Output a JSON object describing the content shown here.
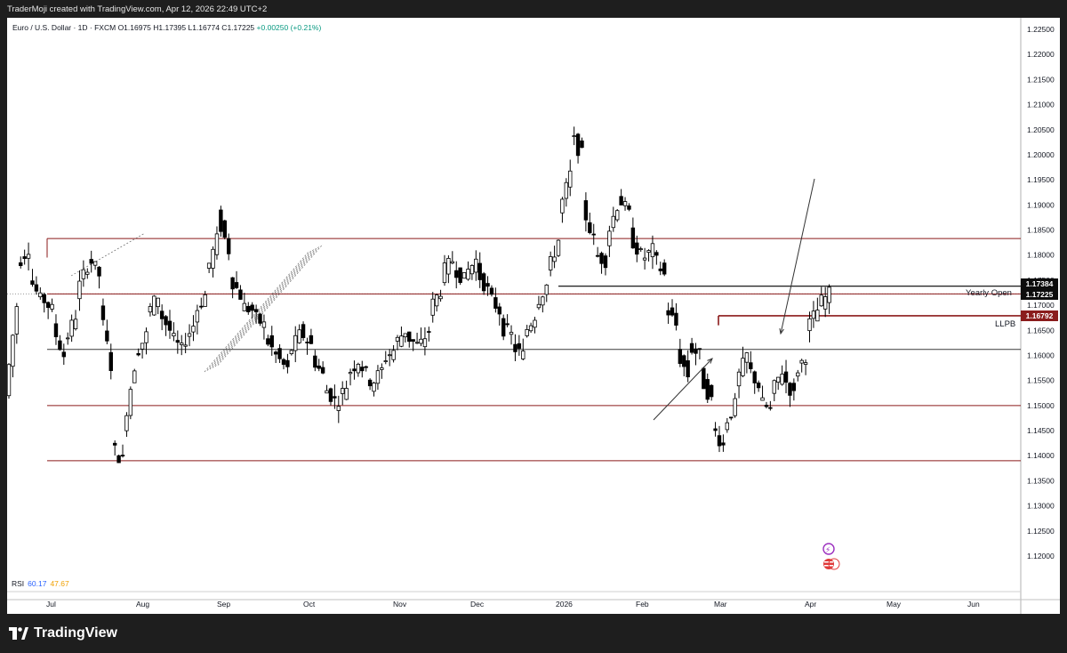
{
  "header": {
    "credit": "TraderMoji created with TradingView.com, Apr 12, 2026 22:49 UTC+2"
  },
  "symbol_info": {
    "name": "Euro / U.S. Dollar · 1D · FXCM",
    "ohlc": "O1.16975 H1.17395 L1.16774 C1.17225",
    "change": "+0.00250 (+0.21%)"
  },
  "rsi": {
    "label": "RSI",
    "value1": "60.17",
    "value2": "47.67"
  },
  "price_axis": {
    "labels": [
      "1.22500",
      "1.22000",
      "1.21500",
      "1.21000",
      "1.20500",
      "1.20000",
      "1.19500",
      "1.19000",
      "1.18500",
      "1.18000",
      "1.17500",
      "1.17000",
      "1.16500",
      "1.16000",
      "1.15500",
      "1.15000",
      "1.14500",
      "1.14000",
      "1.13500",
      "1.13000",
      "1.12500",
      "1.12000"
    ]
  },
  "time_axis": {
    "labels": [
      "Jul",
      "Aug",
      "Sep",
      "Oct",
      "Nov",
      "Dec",
      "2026",
      "Feb",
      "Mar",
      "Apr",
      "May",
      "Jun"
    ]
  },
  "price_tags": {
    "high_level": "1.17384",
    "last_price": "1.17225",
    "llpb_level": "1.16792"
  },
  "annotations": {
    "yearly_open": "Yearly Open",
    "llpb": "LLPB"
  },
  "footer": {
    "brand": "TradingView"
  },
  "colors": {
    "up_candle": "#ffffff",
    "down_candle": "#000000",
    "level_line": "#8b1a1a",
    "rsi_line": "#2962ff",
    "rsi_ma": "#f0a000"
  },
  "chart_data": {
    "type": "candlestick",
    "y_range": [
      1.115,
      1.227
    ],
    "x_labels": [
      "Jul",
      "Aug",
      "Sep",
      "Oct",
      "Nov",
      "Dec",
      "2026",
      "Feb",
      "Mar",
      "Apr",
      "May",
      "Jun"
    ],
    "horizontal_levels": [
      1.1833,
      1.1738,
      1.17225,
      1.1679,
      1.1612,
      1.15,
      1.139
    ],
    "price_path": [
      [
        1.152,
        1.17
      ],
      [
        1.178,
        1.1815
      ],
      [
        1.176,
        1.171
      ],
      [
        1.172,
        1.169
      ],
      [
        1.166,
        1.16
      ],
      [
        1.162,
        1.168
      ],
      [
        1.172,
        1.178
      ],
      [
        1.18,
        1.176
      ],
      [
        1.17,
        1.158
      ],
      [
        1.142,
        1.139
      ],
      [
        1.145,
        1.158
      ],
      [
        1.16,
        1.164
      ],
      [
        1.168,
        1.172
      ],
      [
        1.169,
        1.165
      ],
      [
        1.164,
        1.161
      ],
      [
        1.162,
        1.166
      ],
      [
        1.168,
        1.172
      ],
      [
        1.176,
        1.183
      ],
      [
        1.188,
        1.181
      ],
      [
        1.176,
        1.172
      ],
      [
        1.17,
        1.169
      ],
      [
        1.168,
        1.166
      ],
      [
        1.164,
        1.16
      ],
      [
        1.16,
        1.157
      ],
      [
        1.16,
        1.164
      ],
      [
        1.165,
        1.162
      ],
      [
        1.16,
        1.156
      ],
      [
        1.154,
        1.151
      ],
      [
        1.15,
        1.154
      ],
      [
        1.156,
        1.159
      ],
      [
        1.159,
        1.155
      ],
      [
        1.154,
        1.157
      ],
      [
        1.159,
        1.161
      ],
      [
        1.162,
        1.165
      ],
      [
        1.164,
        1.162
      ],
      [
        1.161,
        1.165
      ],
      [
        1.169,
        1.173
      ],
      [
        1.176,
        1.179
      ],
      [
        1.178,
        1.175
      ],
      [
        1.176,
        1.179
      ],
      [
        1.177,
        1.173
      ],
      [
        1.172,
        1.169
      ],
      [
        1.166,
        1.164
      ],
      [
        1.162,
        1.16
      ],
      [
        1.164,
        1.168
      ],
      [
        1.17,
        1.174
      ],
      [
        1.176,
        1.183
      ],
      [
        1.188,
        1.196
      ],
      [
        1.204,
        1.2
      ],
      [
        1.19,
        1.183
      ],
      [
        1.18,
        1.179
      ],
      [
        1.183,
        1.19
      ],
      [
        1.192,
        1.188
      ],
      [
        1.184,
        1.18
      ],
      [
        1.179,
        1.181
      ],
      [
        1.18,
        1.176
      ],
      [
        1.17,
        1.166
      ],
      [
        1.161,
        1.156
      ],
      [
        1.162,
        1.16
      ],
      [
        1.156,
        1.151
      ],
      [
        1.146,
        1.142
      ],
      [
        1.146,
        1.15
      ],
      [
        1.154,
        1.16
      ],
      [
        1.158,
        1.154
      ],
      [
        1.151,
        1.149
      ],
      [
        1.152,
        1.157
      ],
      [
        1.156,
        1.152
      ],
      [
        1.156,
        1.16
      ],
      [
        1.165,
        1.169
      ],
      [
        1.17,
        1.1722
      ]
    ]
  }
}
